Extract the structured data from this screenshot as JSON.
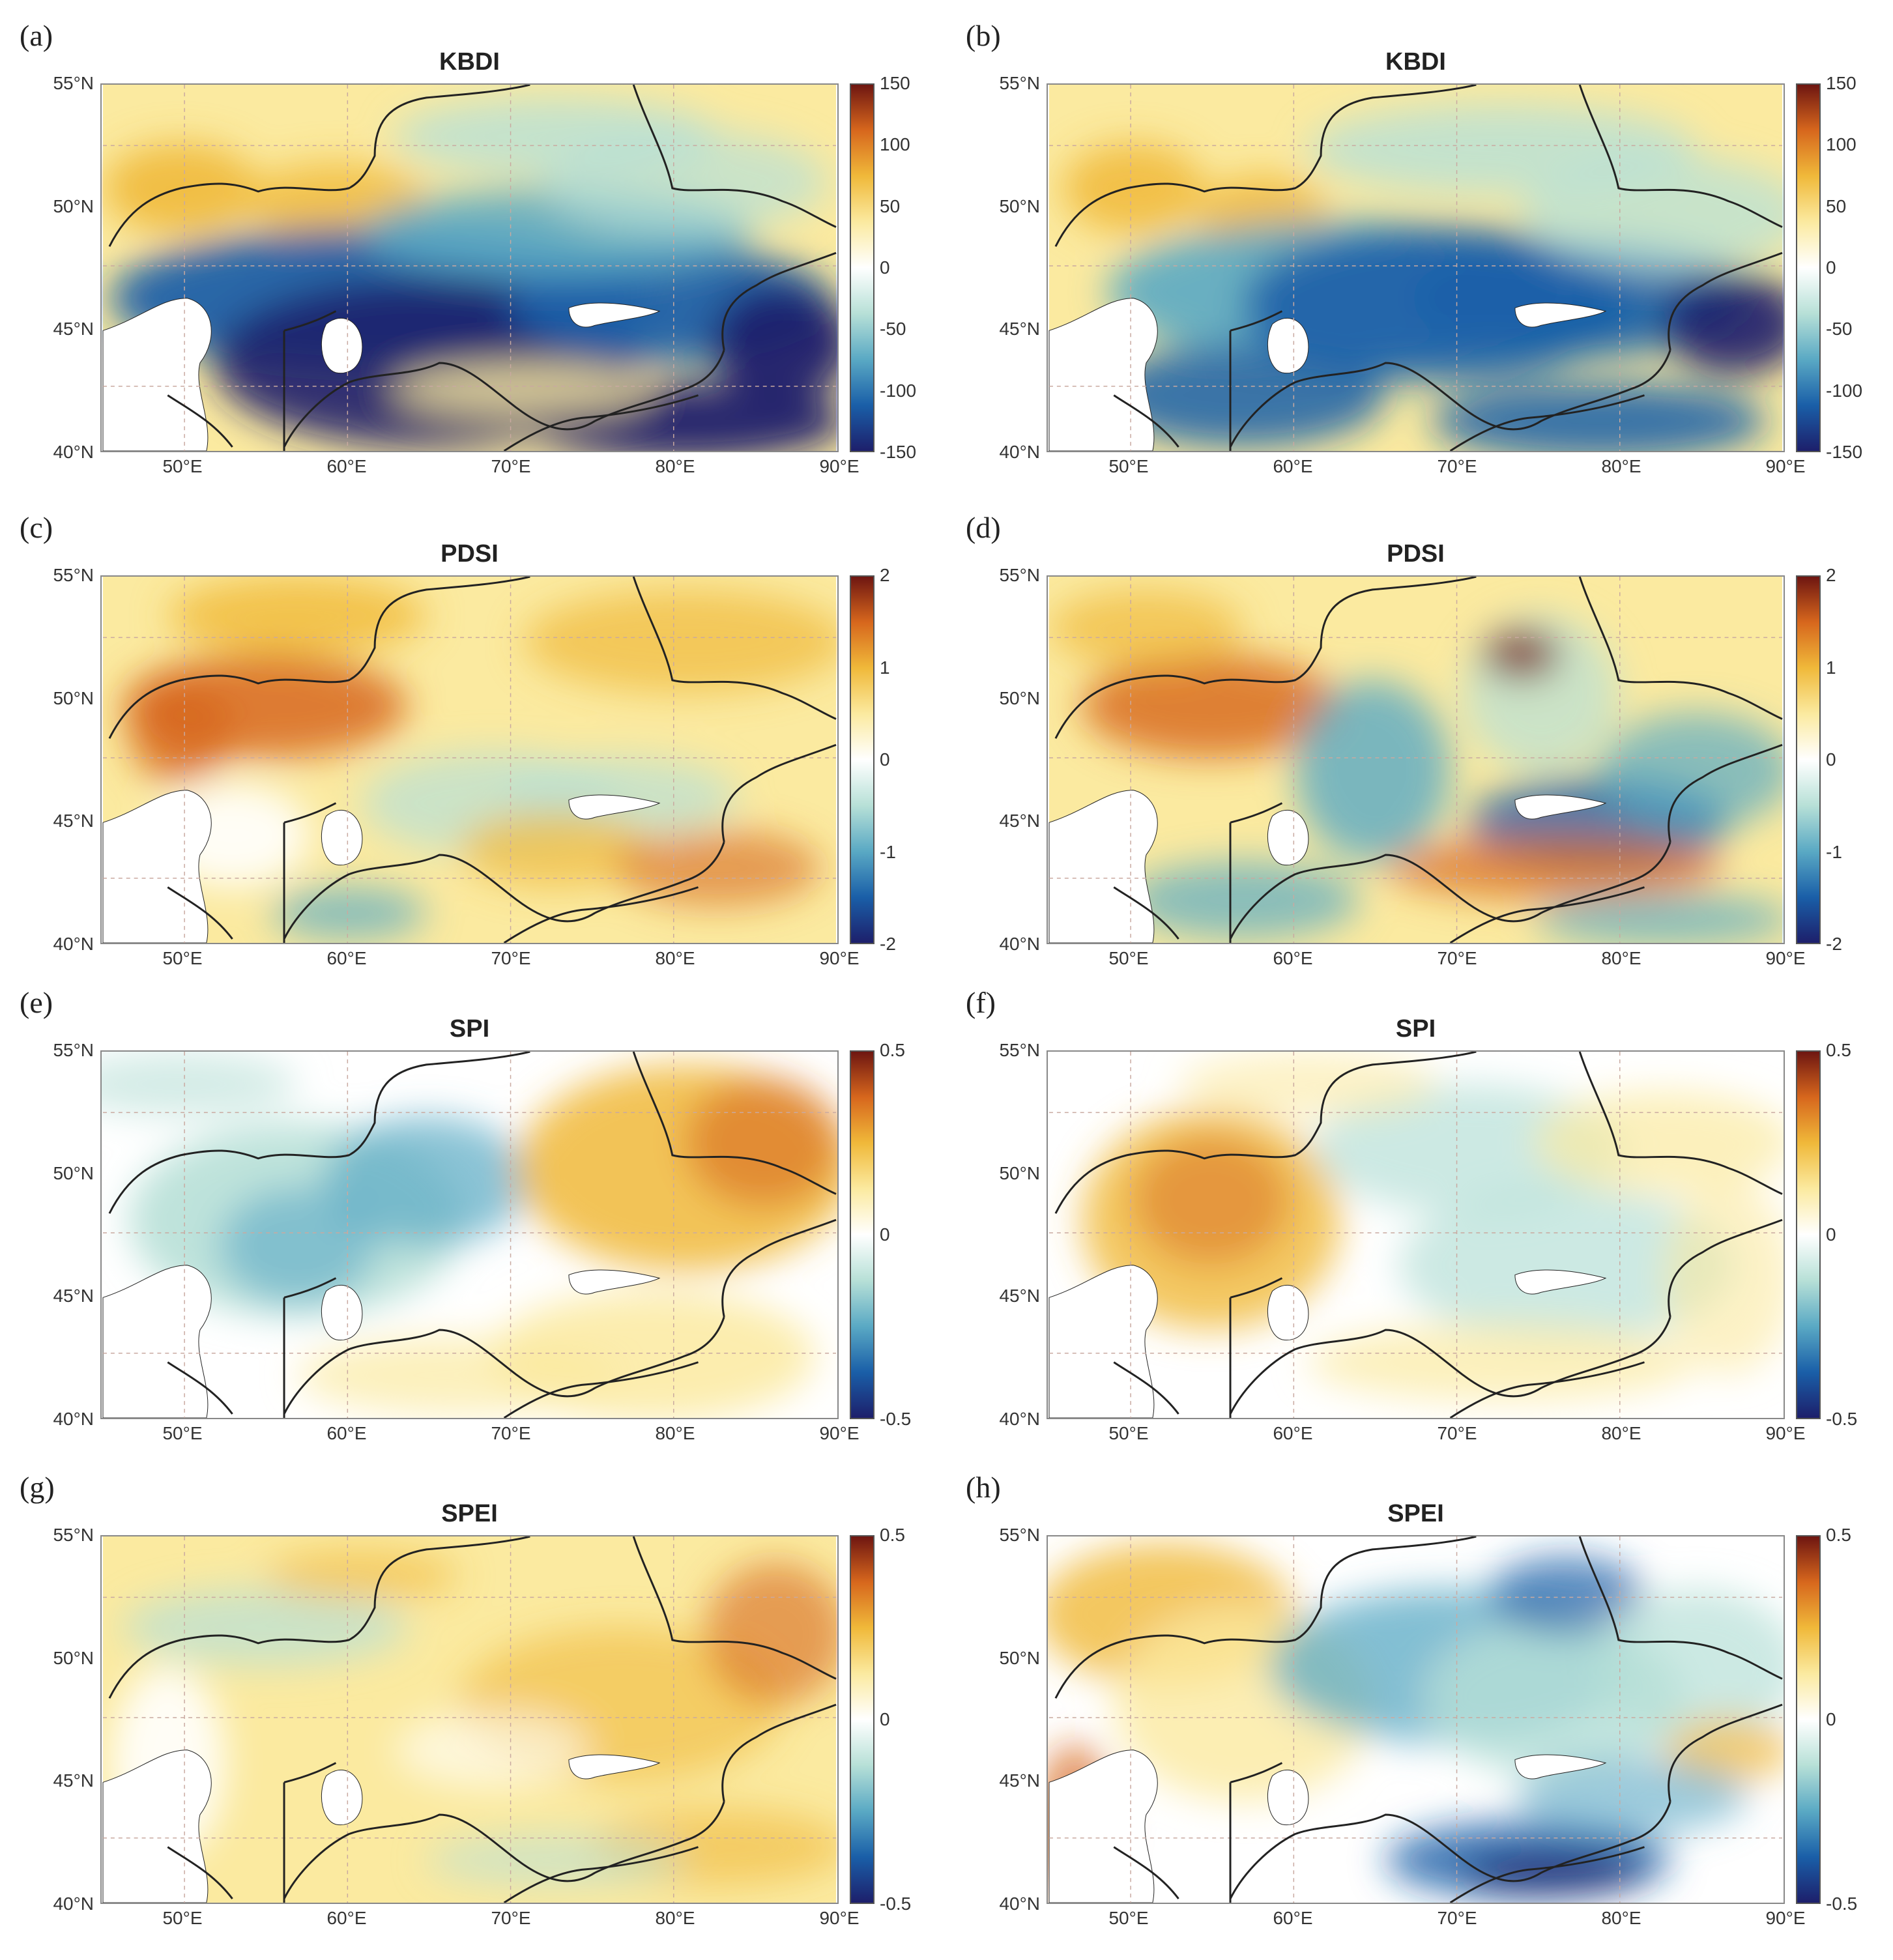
{
  "axes": {
    "lat_labels": [
      "55°N",
      "50°N",
      "45°N",
      "40°N"
    ],
    "lon_labels": [
      "50°E",
      "60°E",
      "70°E",
      "80°E",
      "90°E"
    ]
  },
  "colormap": {
    "negative_extreme": "#1d1f6b",
    "negative_strong": "#1a5fa8",
    "negative_mid": "#5aa9c4",
    "negative_weak": "#b7e0d7",
    "neutral": "#ffffff",
    "positive_weak": "#fbeaa0",
    "positive_mid": "#f0b93a",
    "positive_strong": "#d7671d",
    "positive_extreme": "#6e1611",
    "border_color": "#222222",
    "grid_color": "#c9a9a0"
  },
  "panels": [
    {
      "label": "(a)",
      "title": "KBDI",
      "cbar_ticks": [
        "150",
        "100",
        "50",
        "0",
        "-50",
        "-100",
        "-150"
      ],
      "mood": "kbdi_a"
    },
    {
      "label": "(b)",
      "title": "KBDI",
      "cbar_ticks": [
        "150",
        "100",
        "50",
        "0",
        "-50",
        "-100",
        "-150"
      ],
      "mood": "kbdi_b"
    },
    {
      "label": "(c)",
      "title": "PDSI",
      "cbar_ticks": [
        "2",
        "1",
        "0",
        "-1",
        "-2"
      ],
      "mood": "pdsi_c"
    },
    {
      "label": "(d)",
      "title": "PDSI",
      "cbar_ticks": [
        "2",
        "1",
        "0",
        "-1",
        "-2"
      ],
      "mood": "pdsi_d"
    },
    {
      "label": "(e)",
      "title": "SPI",
      "cbar_ticks": [
        "0.5",
        "0",
        "-0.5"
      ],
      "mood": "spi_e"
    },
    {
      "label": "(f)",
      "title": "SPI",
      "cbar_ticks": [
        "0.5",
        "0",
        "-0.5"
      ],
      "mood": "spi_f"
    },
    {
      "label": "(g)",
      "title": "SPEI",
      "cbar_ticks": [
        "0.5",
        "0",
        "-0.5"
      ],
      "mood": "spei_g"
    },
    {
      "label": "(h)",
      "title": "SPEI",
      "cbar_ticks": [
        "0.5",
        "0",
        "-0.5"
      ],
      "mood": "spei_h"
    }
  ]
}
